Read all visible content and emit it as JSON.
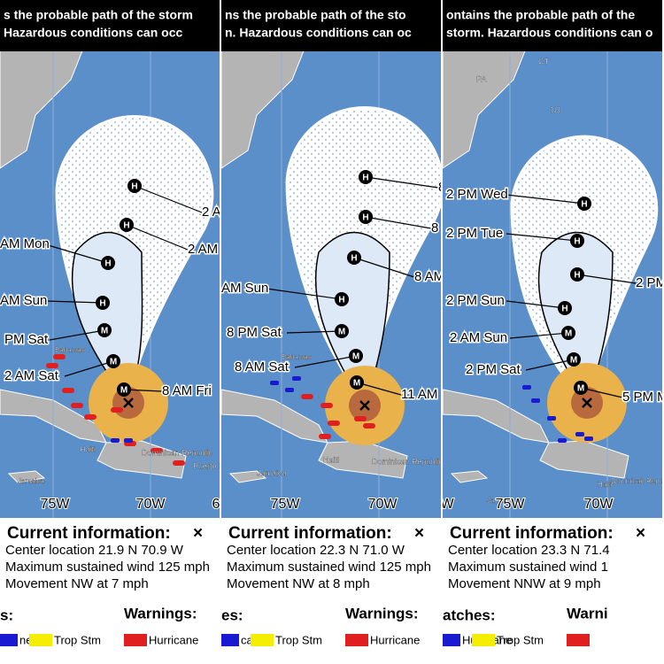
{
  "panels": [
    {
      "header": [
        "s the probable path of the storm",
        "Hazardous conditions can occ"
      ],
      "labels": [
        "2 A",
        "2 AM",
        "AM Mon",
        "AM Sun",
        "PM Sat",
        "2 AM Sat",
        "8 AM Fri"
      ],
      "places": [
        "Bahamas",
        "Haiti",
        "Dominican Republic",
        "Puerto R",
        "Jamaica"
      ],
      "axis": [
        "75W",
        "70W",
        "6"
      ],
      "info": {
        "title": "Current information:",
        "symbol": "×",
        "lines": [
          "Center location 21.9 N 70.9 W",
          "Maximum sustained wind 125 mph",
          "Movement NW at 7 mph"
        ]
      },
      "legend": {
        "left": "s:",
        "right": "Warnings:",
        "items": [
          "ne",
          "Trop Stm",
          "Hurricane"
        ]
      }
    },
    {
      "header": [
        "ns the probable path of the sto",
        "n. Hazardous conditions can oc"
      ],
      "labels": [
        "8",
        "8",
        "8 AM",
        "AM Sun",
        "8 PM Sat",
        "8 AM Sat",
        "11 AM"
      ],
      "places": [
        "Bahamas",
        "Haiti",
        "Dominican Republic",
        "Jamaica"
      ],
      "axis": [
        "75W",
        "70W"
      ],
      "info": {
        "title": "Current information:",
        "symbol": "×",
        "lines": [
          "Center location 22.3 N 71.0 W",
          "Maximum sustained wind 125 mph",
          "Movement NW at 8 mph"
        ]
      },
      "legend": {
        "left": "es:",
        "right": "Warnings:",
        "items": [
          "cane",
          "Trop Stm",
          "Hurricane"
        ]
      }
    },
    {
      "header": [
        "ontains the probable path of the",
        "storm. Hazardous conditions can o"
      ],
      "labels": [
        "2 PM Wed",
        "2 PM Tue",
        "2 PM",
        "2 PM Sun",
        "2 AM Sun",
        "2 PM Sat",
        "5 PM M"
      ],
      "places": [
        "PA",
        "CT",
        "NJ",
        "Jamaica",
        "Haiti",
        "Dominican Republic"
      ],
      "axis": [
        "75W",
        "70W",
        "W"
      ],
      "info": {
        "title": "Current information:",
        "symbol": "×",
        "lines": [
          "Center location 23.3 N 71.4",
          "Maximum sustained wind 1",
          "Movement NNW at 9 mph"
        ]
      },
      "legend": {
        "left": "atches:",
        "right": "Warni",
        "items": [
          "Hurricane",
          "Trop Stm",
          ""
        ]
      }
    }
  ]
}
